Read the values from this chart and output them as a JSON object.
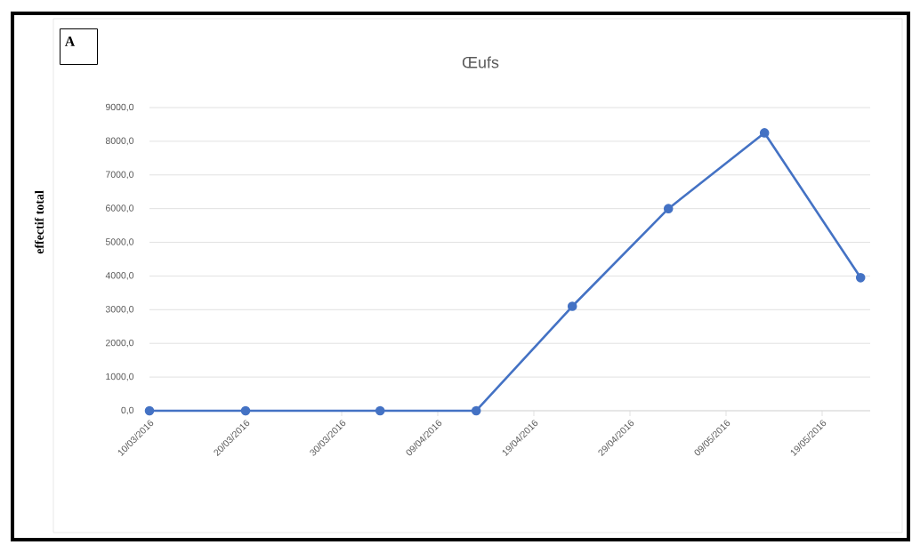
{
  "chart_data": {
    "type": "line",
    "title": "Œufs",
    "ylabel": "effectif total",
    "annotations": [
      "A"
    ],
    "x": [
      "2016-03-10",
      "2016-03-20",
      "2016-04-03",
      "2016-04-13",
      "2016-04-23",
      "2016-05-03",
      "2016-05-13",
      "2016-05-23"
    ],
    "series": [
      {
        "color": "#4472c4",
        "values": [
          0,
          0,
          0,
          0,
          3100,
          6000,
          8250,
          3950
        ]
      }
    ],
    "xlim": [
      "2016-03-10",
      "2016-05-24"
    ],
    "xticks": [
      {
        "value": "2016-03-10",
        "label": "10/03/2016"
      },
      {
        "value": "2016-03-20",
        "label": "20/03/2016"
      },
      {
        "value": "2016-03-30",
        "label": "30/03/2016"
      },
      {
        "value": "2016-04-09",
        "label": "09/04/2016"
      },
      {
        "value": "2016-04-19",
        "label": "19/04/2016"
      },
      {
        "value": "2016-04-29",
        "label": "29/04/2016"
      },
      {
        "value": "2016-05-09",
        "label": "09/05/2016"
      },
      {
        "value": "2016-05-19",
        "label": "19/05/2016"
      }
    ],
    "ylim": [
      0,
      9000
    ],
    "yticks": [
      {
        "value": 0,
        "label": "0,0"
      },
      {
        "value": 1000,
        "label": "1000,0"
      },
      {
        "value": 2000,
        "label": "2000,0"
      },
      {
        "value": 3000,
        "label": "3000,0"
      },
      {
        "value": 4000,
        "label": "4000,0"
      },
      {
        "value": 5000,
        "label": "5000,0"
      },
      {
        "value": 6000,
        "label": "6000,0"
      },
      {
        "value": 7000,
        "label": "7000,0"
      },
      {
        "value": 8000,
        "label": "8000,0"
      },
      {
        "value": 9000,
        "label": "9000,0"
      }
    ],
    "grid": "y",
    "marker": "circle",
    "line_style": "solid"
  }
}
